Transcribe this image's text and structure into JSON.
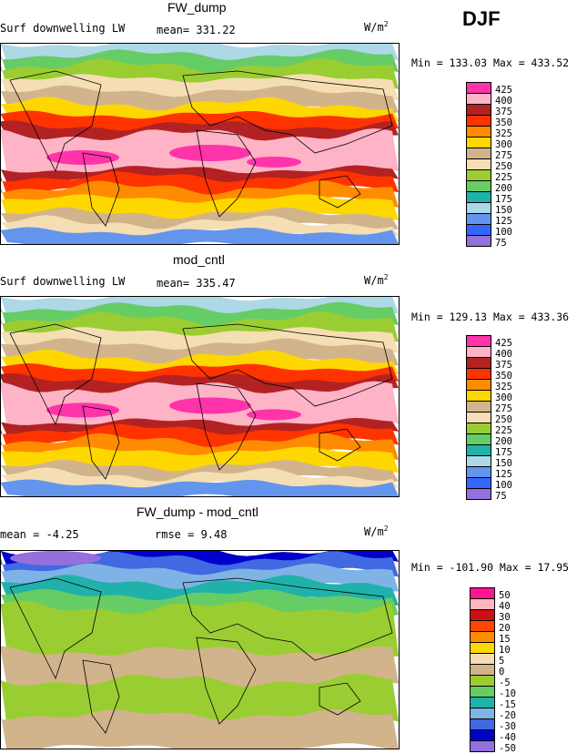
{
  "season": "DJF",
  "panels": [
    {
      "title": "FW_dump",
      "left_label": "Surf downwelling LW",
      "mean_text": "mean= 331.22",
      "units": "W/m",
      "units_sup": "2",
      "minmax": "Min = 133.03 Max = 433.52",
      "levels": [
        "425",
        "400",
        "375",
        "350",
        "325",
        "300",
        "275",
        "250",
        "225",
        "200",
        "175",
        "150",
        "125",
        "100",
        "75"
      ]
    },
    {
      "title": "mod_cntl",
      "left_label": "Surf downwelling LW",
      "mean_text": "mean= 335.47",
      "units": "W/m",
      "units_sup": "2",
      "minmax": "Min = 129.13 Max = 433.36",
      "levels": [
        "425",
        "400",
        "375",
        "350",
        "325",
        "300",
        "275",
        "250",
        "225",
        "200",
        "175",
        "150",
        "125",
        "100",
        "75"
      ]
    },
    {
      "title": "FW_dump - mod_cntl",
      "left_label": "mean =  -4.25",
      "mean_text": "rmse =   9.48",
      "units": "W/m",
      "units_sup": "2",
      "minmax": "Min = -101.90 Max =  17.95",
      "levels": [
        "50",
        "40",
        "30",
        "20",
        "15",
        "10",
        "5",
        "0",
        "-5",
        "-10",
        "-15",
        "-20",
        "-30",
        "-40",
        "-50"
      ]
    }
  ],
  "colors": {
    "abs_scale": [
      "#ff33aa",
      "#ffb3c6",
      "#b22222",
      "#ff3300",
      "#ff8c00",
      "#ffd700",
      "#d2b48c",
      "#f5deb3",
      "#9acd32",
      "#66cc66",
      "#20b2aa",
      "#add8e6",
      "#6495ed",
      "#3366ff",
      "#9370db"
    ],
    "diff_scale": [
      "#ff1493",
      "#ffb6c1",
      "#cc1111",
      "#ff4500",
      "#ff8c00",
      "#ffd700",
      "#f5deb3",
      "#d2b48c",
      "#9acd32",
      "#66cc66",
      "#20b2aa",
      "#7fb3e6",
      "#4169e1",
      "#0000cc",
      "#9370db"
    ]
  }
}
